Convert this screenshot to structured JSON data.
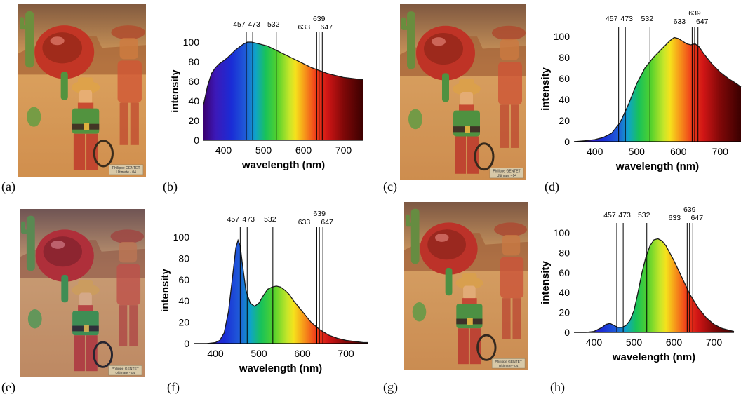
{
  "panels": [
    {
      "id": "a",
      "label": "(a)",
      "kind": "photo",
      "tint": "#f3a94e",
      "caption_1": "Philippe GENTET",
      "caption_2": "Ultimate - 04"
    },
    {
      "id": "b",
      "label": "(b)",
      "kind": "chart"
    },
    {
      "id": "c",
      "label": "(c)",
      "kind": "photo",
      "tint": "#e39a55",
      "caption_1": "Philippe GENTET",
      "caption_2": "Ultimate - 04"
    },
    {
      "id": "d",
      "label": "(d)",
      "kind": "chart"
    },
    {
      "id": "e",
      "label": "(e)",
      "kind": "photo",
      "tint": "#8a86c4",
      "caption_1": "Philippe GENTET",
      "caption_2": "Ultimate - 04"
    },
    {
      "id": "f",
      "label": "(f)",
      "kind": "chart"
    },
    {
      "id": "g",
      "label": "(g)",
      "kind": "photo",
      "tint": "#d39863",
      "caption_1": "Philippe GENTET",
      "caption_2": "Ultimate - 04"
    },
    {
      "id": "h",
      "label": "(h)",
      "kind": "chart"
    }
  ],
  "chart_data": [
    {
      "panel": "b",
      "type": "area",
      "xlabel": "wavelength (nm)",
      "ylabel": "intensity",
      "xlim": [
        350,
        750
      ],
      "ylim": [
        0,
        100
      ],
      "xticks": [
        400,
        500,
        600,
        700
      ],
      "yticks": [
        0,
        20,
        40,
        60,
        80,
        100
      ],
      "laser_lines": [
        457,
        473,
        532,
        633,
        639,
        647
      ],
      "laser_labels": [
        "457",
        "473",
        "532",
        "633",
        "639",
        "647"
      ],
      "x": [
        350,
        360,
        370,
        380,
        390,
        400,
        410,
        420,
        430,
        440,
        450,
        460,
        470,
        480,
        490,
        500,
        510,
        520,
        530,
        540,
        550,
        560,
        570,
        580,
        590,
        600,
        620,
        640,
        660,
        680,
        700,
        720,
        740,
        750
      ],
      "y": [
        36,
        55,
        68,
        74,
        78,
        81,
        84,
        88,
        92,
        95,
        98,
        100,
        100,
        99,
        98,
        97,
        96,
        94,
        92,
        90,
        88,
        86,
        84,
        82,
        80,
        78,
        74,
        71,
        68,
        66,
        64,
        63,
        62,
        62
      ]
    },
    {
      "panel": "d",
      "type": "area",
      "xlabel": "wavelength (nm)",
      "ylabel": "intensity",
      "xlim": [
        350,
        750
      ],
      "ylim": [
        0,
        100
      ],
      "xticks": [
        400,
        500,
        600,
        700
      ],
      "yticks": [
        0,
        20,
        40,
        60,
        80,
        100
      ],
      "laser_lines": [
        457,
        473,
        532,
        633,
        639,
        647
      ],
      "laser_labels": [
        "457",
        "473",
        "532",
        "633",
        "639",
        "647"
      ],
      "x": [
        350,
        380,
        400,
        420,
        440,
        460,
        480,
        500,
        520,
        540,
        560,
        580,
        590,
        600,
        620,
        630,
        640,
        650,
        660,
        680,
        700,
        720,
        740,
        750
      ],
      "y": [
        0,
        1,
        2,
        4,
        8,
        18,
        35,
        55,
        70,
        80,
        88,
        96,
        99,
        98,
        93,
        92,
        93,
        90,
        84,
        74,
        66,
        60,
        55,
        52
      ]
    },
    {
      "panel": "f",
      "type": "area",
      "xlabel": "wavelength (nm)",
      "ylabel": "intensity",
      "xlim": [
        350,
        750
      ],
      "ylim": [
        0,
        100
      ],
      "xticks": [
        400,
        500,
        600,
        700
      ],
      "yticks": [
        0,
        20,
        40,
        60,
        80,
        100
      ],
      "laser_lines": [
        457,
        473,
        532,
        633,
        639,
        647
      ],
      "laser_labels": [
        "457",
        "473",
        "532",
        "633",
        "639",
        "647"
      ],
      "x": [
        350,
        380,
        400,
        410,
        420,
        430,
        440,
        447,
        452,
        457,
        462,
        470,
        480,
        490,
        500,
        510,
        520,
        530,
        540,
        550,
        560,
        570,
        580,
        600,
        620,
        640,
        660,
        680,
        700,
        720,
        740,
        750
      ],
      "y": [
        0,
        0,
        1,
        3,
        10,
        30,
        65,
        90,
        97,
        92,
        75,
        50,
        38,
        35,
        38,
        45,
        51,
        53,
        54,
        53,
        50,
        46,
        40,
        30,
        20,
        13,
        8,
        5,
        3,
        2,
        1,
        1
      ]
    },
    {
      "panel": "h",
      "type": "area",
      "xlabel": "wavelength (nm)",
      "ylabel": "intensity",
      "xlim": [
        350,
        750
      ],
      "ylim": [
        0,
        100
      ],
      "xticks": [
        400,
        500,
        600,
        700
      ],
      "yticks": [
        0,
        20,
        40,
        60,
        80,
        100
      ],
      "laser_lines": [
        457,
        473,
        532,
        633,
        639,
        647
      ],
      "laser_labels": [
        "457",
        "473",
        "532",
        "633",
        "639",
        "647"
      ],
      "x": [
        350,
        380,
        400,
        420,
        430,
        440,
        450,
        460,
        470,
        480,
        490,
        500,
        510,
        520,
        530,
        540,
        550,
        560,
        570,
        580,
        600,
        620,
        640,
        660,
        680,
        700,
        720,
        740,
        750
      ],
      "y": [
        0,
        0,
        1,
        5,
        8,
        9,
        7,
        5,
        5,
        7,
        12,
        22,
        40,
        60,
        76,
        87,
        93,
        94,
        92,
        87,
        72,
        55,
        38,
        25,
        15,
        8,
        4,
        2,
        1
      ]
    }
  ]
}
